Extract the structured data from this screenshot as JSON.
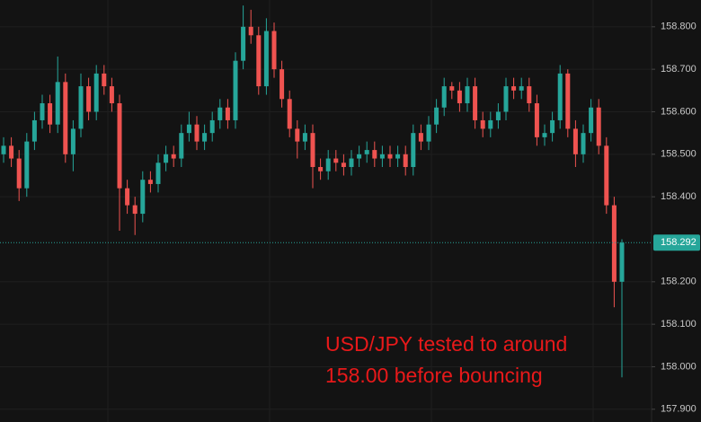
{
  "chart_data": {
    "type": "candlestick",
    "open": [
      158.5,
      158.52,
      158.49,
      158.42,
      158.53,
      158.58,
      158.62,
      158.57,
      158.67,
      158.5,
      158.56,
      158.66,
      158.6,
      158.69,
      158.66,
      158.62,
      158.42,
      158.38,
      158.36,
      158.44,
      158.43,
      158.48,
      158.5,
      158.49,
      158.55,
      158.57,
      158.53,
      158.55,
      158.58,
      158.61,
      158.58,
      158.72,
      158.8,
      158.78,
      158.66,
      158.79,
      158.7,
      158.63,
      158.56,
      158.53,
      158.55,
      158.47,
      158.46,
      158.49,
      158.48,
      158.47,
      158.49,
      158.5,
      158.51,
      158.49,
      158.5,
      158.49,
      158.5,
      158.47,
      158.55,
      158.53,
      158.57,
      158.61,
      158.66,
      158.65,
      158.62,
      158.66,
      158.58,
      158.56,
      158.58,
      158.6,
      158.66,
      158.65,
      158.66,
      158.62,
      158.54,
      158.55,
      158.58,
      158.69,
      158.56,
      158.5,
      158.55,
      158.61,
      158.52,
      158.38,
      158.2
    ],
    "high": [
      158.54,
      158.54,
      158.51,
      158.55,
      158.6,
      158.64,
      158.64,
      158.73,
      158.69,
      158.58,
      158.69,
      158.68,
      158.71,
      158.71,
      158.68,
      158.64,
      158.44,
      158.4,
      158.46,
      158.46,
      158.5,
      158.52,
      158.52,
      158.57,
      158.6,
      158.59,
      158.57,
      158.6,
      158.63,
      158.63,
      158.74,
      158.85,
      158.84,
      158.8,
      158.82,
      158.81,
      158.72,
      158.65,
      158.58,
      158.57,
      158.57,
      158.49,
      158.51,
      158.51,
      158.5,
      158.51,
      158.52,
      158.53,
      158.53,
      158.52,
      158.52,
      158.52,
      158.52,
      158.57,
      158.57,
      158.59,
      158.63,
      158.68,
      158.67,
      158.67,
      158.68,
      158.68,
      158.6,
      158.6,
      158.62,
      158.68,
      158.68,
      158.68,
      158.68,
      158.64,
      158.57,
      158.6,
      158.71,
      158.7,
      158.58,
      158.57,
      158.63,
      158.63,
      158.54,
      158.4,
      158.3
    ],
    "low": [
      158.48,
      158.47,
      158.39,
      158.4,
      158.51,
      158.56,
      158.55,
      158.55,
      158.48,
      158.46,
      158.54,
      158.58,
      158.58,
      158.64,
      158.6,
      158.32,
      158.36,
      158.31,
      158.34,
      158.41,
      158.41,
      158.46,
      158.47,
      158.47,
      158.53,
      158.51,
      158.51,
      158.53,
      158.56,
      158.56,
      158.56,
      158.7,
      158.76,
      158.64,
      158.64,
      158.68,
      158.61,
      158.54,
      158.49,
      158.51,
      158.42,
      158.44,
      158.44,
      158.46,
      158.45,
      158.45,
      158.47,
      158.48,
      158.47,
      158.47,
      158.47,
      158.47,
      158.45,
      158.45,
      158.51,
      158.51,
      158.55,
      158.59,
      158.63,
      158.6,
      158.6,
      158.56,
      158.54,
      158.54,
      158.56,
      158.58,
      158.63,
      158.63,
      158.6,
      158.52,
      158.52,
      158.53,
      158.56,
      158.54,
      158.47,
      158.48,
      158.53,
      158.5,
      158.36,
      158.14,
      157.975
    ],
    "close": [
      158.52,
      158.49,
      158.42,
      158.53,
      158.58,
      158.62,
      158.57,
      158.67,
      158.5,
      158.56,
      158.66,
      158.6,
      158.69,
      158.66,
      158.62,
      158.42,
      158.38,
      158.36,
      158.44,
      158.43,
      158.48,
      158.5,
      158.49,
      158.55,
      158.57,
      158.53,
      158.55,
      158.58,
      158.61,
      158.58,
      158.72,
      158.8,
      158.78,
      158.66,
      158.79,
      158.7,
      158.63,
      158.56,
      158.53,
      158.55,
      158.47,
      158.46,
      158.49,
      158.48,
      158.47,
      158.49,
      158.5,
      158.51,
      158.49,
      158.5,
      158.49,
      158.5,
      158.47,
      158.55,
      158.53,
      158.57,
      158.61,
      158.66,
      158.65,
      158.62,
      158.66,
      158.58,
      158.56,
      158.58,
      158.6,
      158.66,
      158.65,
      158.66,
      158.62,
      158.54,
      158.55,
      158.58,
      158.69,
      158.56,
      158.5,
      158.55,
      158.61,
      158.52,
      158.38,
      158.2,
      158.292
    ],
    "up_color": "#26a69a",
    "down_color": "#ef5350",
    "ylim": [
      157.87,
      158.863
    ],
    "yticks": [
      {
        "value": 157.9,
        "label": "157.900"
      },
      {
        "value": 158.0,
        "label": "158.000"
      },
      {
        "value": 158.1,
        "label": "158.100"
      },
      {
        "value": 158.2,
        "label": "158.200"
      },
      {
        "value": 158.4,
        "label": "158.400"
      },
      {
        "value": 158.5,
        "label": "158.500"
      },
      {
        "value": 158.6,
        "label": "158.600"
      },
      {
        "value": 158.7,
        "label": "158.700"
      },
      {
        "value": 158.8,
        "label": "158.800"
      }
    ],
    "grid": true,
    "annotation": [
      "USD/JPY tested to around",
      "158.00 before bouncing"
    ],
    "annotation_color": "#e8191a"
  }
}
